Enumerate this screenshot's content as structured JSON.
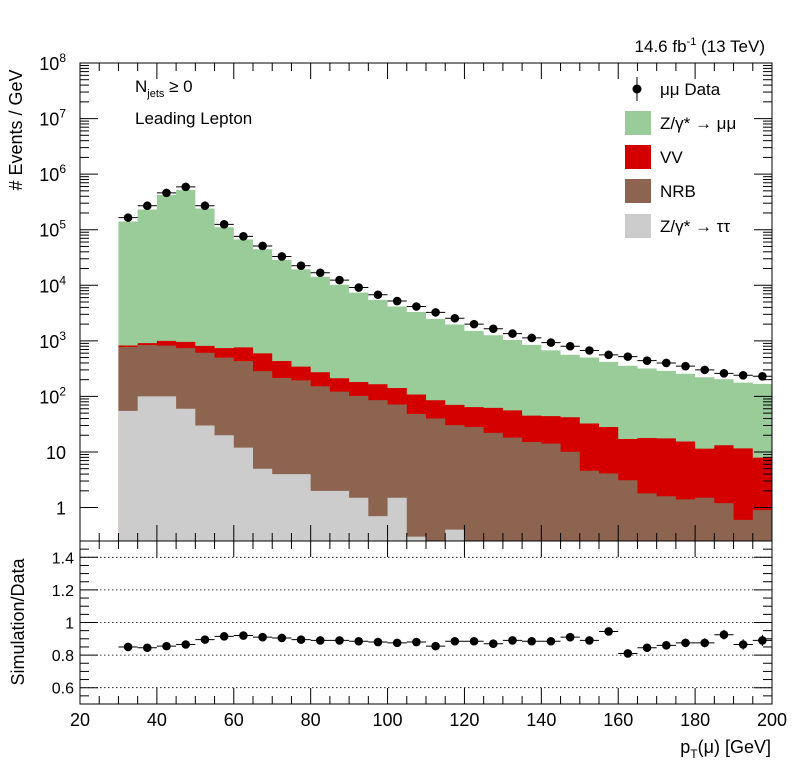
{
  "chart_data": [
    {
      "type": "stacked-histogram",
      "yscale": "log",
      "ylabel": "# Events / GeV",
      "ylim": [
        0.25,
        100000000
      ],
      "xlim": [
        20,
        200
      ],
      "lumi": "14.6 fb",
      "lumi_sup": "-1",
      "lumi_suffix": " (13 TeV)",
      "ann_njets_main": "N",
      "ann_njets_sub": "jets",
      "ann_njets_rel": " ≥ 0",
      "ann_selection": "Leading Lepton",
      "yticks": [
        {
          "v": 1,
          "base": "1",
          "exp": ""
        },
        {
          "v": 10,
          "base": "10",
          "exp": ""
        },
        {
          "v": 100,
          "base": "10",
          "exp": "2"
        },
        {
          "v": 1000,
          "base": "10",
          "exp": "3"
        },
        {
          "v": 10000,
          "base": "10",
          "exp": "4"
        },
        {
          "v": 100000,
          "base": "10",
          "exp": "5"
        },
        {
          "v": 1000000,
          "base": "10",
          "exp": "6"
        },
        {
          "v": 10000000,
          "base": "10",
          "exp": "7"
        },
        {
          "v": 100000000,
          "base": "10",
          "exp": "8"
        }
      ],
      "bin_edges": [
        30,
        35,
        40,
        45,
        50,
        55,
        60,
        65,
        70,
        75,
        80,
        85,
        90,
        95,
        100,
        105,
        110,
        115,
        120,
        125,
        130,
        135,
        140,
        145,
        150,
        155,
        160,
        165,
        170,
        175,
        180,
        185,
        190,
        195,
        200
      ],
      "series": [
        {
          "name": "Z/γ* → ττ",
          "color": "#cccccc",
          "values": [
            55,
            100,
            100,
            60,
            30,
            20,
            12,
            5,
            4,
            4,
            2,
            2,
            1.5,
            0.7,
            1.5,
            0.3,
            0.1,
            0.4,
            0.1,
            0.1,
            0.1,
            0.1,
            0.1,
            0.1,
            0.1,
            0.1,
            0.1,
            0.1,
            0.1,
            0.1,
            0.1,
            0.1,
            0.1,
            0.1
          ]
        },
        {
          "name": "NRB",
          "color": "#8c6450",
          "values": [
            720,
            740,
            720,
            680,
            580,
            480,
            420,
            280,
            210,
            190,
            150,
            120,
            100,
            85,
            70,
            48,
            40,
            30,
            28,
            22,
            18,
            15,
            14,
            10,
            4.5,
            4,
            3,
            1.7,
            1.5,
            1.3,
            1.4,
            1.1,
            0.5,
            0.8
          ]
        },
        {
          "name": "VV",
          "color": "#d40000",
          "values": [
            50,
            70,
            180,
            220,
            200,
            240,
            330,
            310,
            220,
            150,
            120,
            90,
            80,
            80,
            70,
            60,
            45,
            40,
            36,
            40,
            38,
            30,
            30,
            32,
            28,
            24,
            14,
            16,
            16,
            14,
            10,
            12,
            11,
            7
          ]
        },
        {
          "name": "Z/γ* → μμ",
          "color": "#99cc99",
          "values": [
            140000,
            230000,
            420000,
            520000,
            240000,
            110000,
            66000,
            44000,
            28000,
            19000,
            14000,
            10000,
            7200,
            5300,
            4000,
            3200,
            2400,
            1900,
            1450,
            1200,
            980,
            800,
            630,
            520,
            470,
            390,
            340,
            300,
            270,
            240,
            210,
            190,
            165,
            160
          ]
        }
      ],
      "data": {
        "name": "μμ Data",
        "values": [
          165000,
          270000,
          460000,
          590000,
          270000,
          125000,
          76000,
          51000,
          33000,
          22500,
          16800,
          12400,
          9100,
          6750,
          5200,
          4150,
          3250,
          2550,
          2000,
          1650,
          1350,
          1130,
          930,
          800,
          670,
          560,
          520,
          440,
          400,
          350,
          300,
          260,
          240,
          230
        ]
      },
      "legend": [
        {
          "label": "μμ Data",
          "kind": "marker"
        },
        {
          "label": "Z/γ* → μμ",
          "kind": "fill",
          "color": "#99cc99"
        },
        {
          "label": "VV",
          "kind": "fill",
          "color": "#d40000"
        },
        {
          "label": "NRB",
          "kind": "fill",
          "color": "#8c6450"
        },
        {
          "label": "Z/γ* → ττ",
          "kind": "fill",
          "color": "#cccccc"
        }
      ],
      "legend_placement": "top-right"
    },
    {
      "type": "ratio-scatter",
      "ylabel": "Simulation/Data",
      "xlabel": "p",
      "xlabel_sub": "T",
      "xlabel_rest": "(μ) [GeV]",
      "ylim": [
        0.5,
        1.5
      ],
      "xlim": [
        20,
        200
      ],
      "yticks": [
        "0.6",
        "0.8",
        "1",
        "1.2",
        "1.4"
      ],
      "xticks": [
        "20",
        "40",
        "60",
        "80",
        "100",
        "120",
        "140",
        "160",
        "180",
        "200"
      ],
      "grid_lines": [
        0.6,
        0.8,
        1.0,
        1.2,
        1.4
      ],
      "x": [
        32.5,
        37.5,
        42.5,
        47.5,
        52.5,
        57.5,
        62.5,
        67.5,
        72.5,
        77.5,
        82.5,
        87.5,
        92.5,
        97.5,
        102.5,
        107.5,
        112.5,
        117.5,
        122.5,
        127.5,
        132.5,
        137.5,
        142.5,
        147.5,
        152.5,
        157.5,
        162.5,
        167.5,
        172.5,
        177.5,
        182.5,
        187.5,
        192.5,
        197.5
      ],
      "values": [
        0.85,
        0.845,
        0.855,
        0.865,
        0.895,
        0.915,
        0.92,
        0.91,
        0.905,
        0.895,
        0.89,
        0.89,
        0.885,
        0.88,
        0.875,
        0.88,
        0.855,
        0.885,
        0.885,
        0.87,
        0.89,
        0.885,
        0.885,
        0.91,
        0.89,
        0.945,
        0.81,
        0.845,
        0.86,
        0.875,
        0.875,
        0.925,
        0.865,
        0.89
      ],
      "errors": [
        0.005,
        0.005,
        0.005,
        0.005,
        0.005,
        0.005,
        0.005,
        0.005,
        0.005,
        0.005,
        0.005,
        0.006,
        0.006,
        0.007,
        0.008,
        0.008,
        0.009,
        0.01,
        0.011,
        0.012,
        0.013,
        0.014,
        0.015,
        0.016,
        0.018,
        0.02,
        0.021,
        0.022,
        0.024,
        0.026,
        0.028,
        0.03,
        0.032,
        0.034
      ]
    }
  ]
}
